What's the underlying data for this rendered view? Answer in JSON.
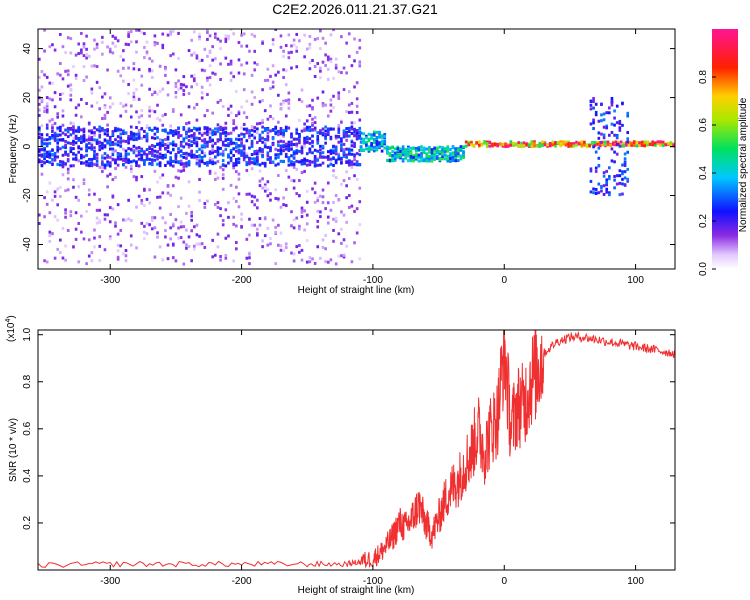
{
  "title": "C2E2.2026.011.21.37.G21",
  "colors": {
    "snr_line": "#f03030",
    "background": "#ffffff",
    "spectrum_base": "#7a24ff",
    "spectrum_light": "#c9a4ff"
  },
  "chart_data": [
    {
      "type": "heatmap",
      "title": "C2E2.2026.011.21.37.G21",
      "xlabel": "Height of straight line (km)",
      "ylabel": "Frequency (Hz)",
      "xlim": [
        -355,
        130
      ],
      "ylim": [
        -50,
        48
      ],
      "x_ticks": [
        -300,
        -200,
        -100,
        0,
        100
      ],
      "x_tick_labels": [
        "-300",
        "-200",
        "-100",
        "0",
        "100"
      ],
      "y_ticks": [
        -40,
        -20,
        0,
        20,
        40
      ],
      "y_tick_labels": [
        "-40",
        "-20",
        "0",
        "20",
        "40"
      ],
      "colorbar": {
        "label": "Normalized spectral amplitude",
        "range": [
          0,
          1
        ],
        "colormap": "rainbow (white-purple-blue-cyan-green-yellow-red-magenta)",
        "ticks": [
          0.0,
          0.2,
          0.4,
          0.6,
          0.8
        ],
        "tick_labels": [
          "0.0",
          "0.2",
          "0.4",
          "0.6",
          "0.8"
        ]
      },
      "features": [
        {
          "x_range": [
            -355,
            -110
          ],
          "freq_center": 0,
          "core_halfwidth_hz": 8,
          "scatter_halfwidth_hz": 48,
          "amplitude": 0.3
        },
        {
          "x_range": [
            -110,
            -90
          ],
          "freq_center": 2,
          "core_halfwidth_hz": 4,
          "amplitude": 0.45
        },
        {
          "x_range": [
            -90,
            -30
          ],
          "freq_center": -3,
          "core_halfwidth_hz": 3,
          "amplitude": 0.5
        },
        {
          "x_range": [
            -30,
            130
          ],
          "freq_center": 1,
          "core_halfwidth_hz": 1,
          "amplitude": 0.95
        },
        {
          "x_range": [
            65,
            95
          ],
          "freq_center": 0,
          "core_halfwidth_hz": 20,
          "amplitude": 0.3
        }
      ]
    },
    {
      "type": "line",
      "xlabel": "Height of straight line (km)",
      "ylabel": "SNR (10 * v/v)",
      "y_multiplier": "(x10^4)",
      "y_multiplier_base": "(x10",
      "y_multiplier_exp": "4",
      "y_multiplier_close": ")",
      "xlim": [
        -355,
        130
      ],
      "ylim": [
        0,
        1.02
      ],
      "x_ticks": [
        -300,
        -200,
        -100,
        0,
        100
      ],
      "x_tick_labels": [
        "-300",
        "-200",
        "-100",
        "0",
        "100"
      ],
      "y_ticks": [
        0.2,
        0.4,
        0.6,
        0.8,
        1.0
      ],
      "y_tick_labels": [
        "0.2",
        "0.4",
        "0.6",
        "0.8",
        "1.0"
      ],
      "series": [
        {
          "x": [
            -355,
            -300,
            -250,
            -200,
            -150,
            -120,
            -110,
            -100,
            -95,
            -90,
            -85,
            -80,
            -75,
            -70,
            -65,
            -60,
            -55,
            -50,
            -45,
            -40,
            -35,
            -30,
            -25,
            -20,
            -15,
            -10,
            -5,
            0,
            5,
            10,
            15,
            20,
            25,
            30,
            40,
            50,
            60,
            70,
            80,
            90,
            100,
            110,
            120,
            130
          ],
          "y": [
            0.02,
            0.025,
            0.025,
            0.025,
            0.025,
            0.025,
            0.035,
            0.05,
            0.07,
            0.1,
            0.14,
            0.2,
            0.18,
            0.22,
            0.28,
            0.2,
            0.15,
            0.22,
            0.3,
            0.35,
            0.38,
            0.45,
            0.5,
            0.6,
            0.5,
            0.6,
            0.65,
            0.95,
            0.6,
            0.7,
            0.7,
            0.8,
            0.85,
            0.92,
            0.97,
            0.99,
            0.99,
            0.98,
            0.97,
            0.96,
            0.95,
            0.94,
            0.93,
            0.92
          ]
        }
      ]
    }
  ]
}
